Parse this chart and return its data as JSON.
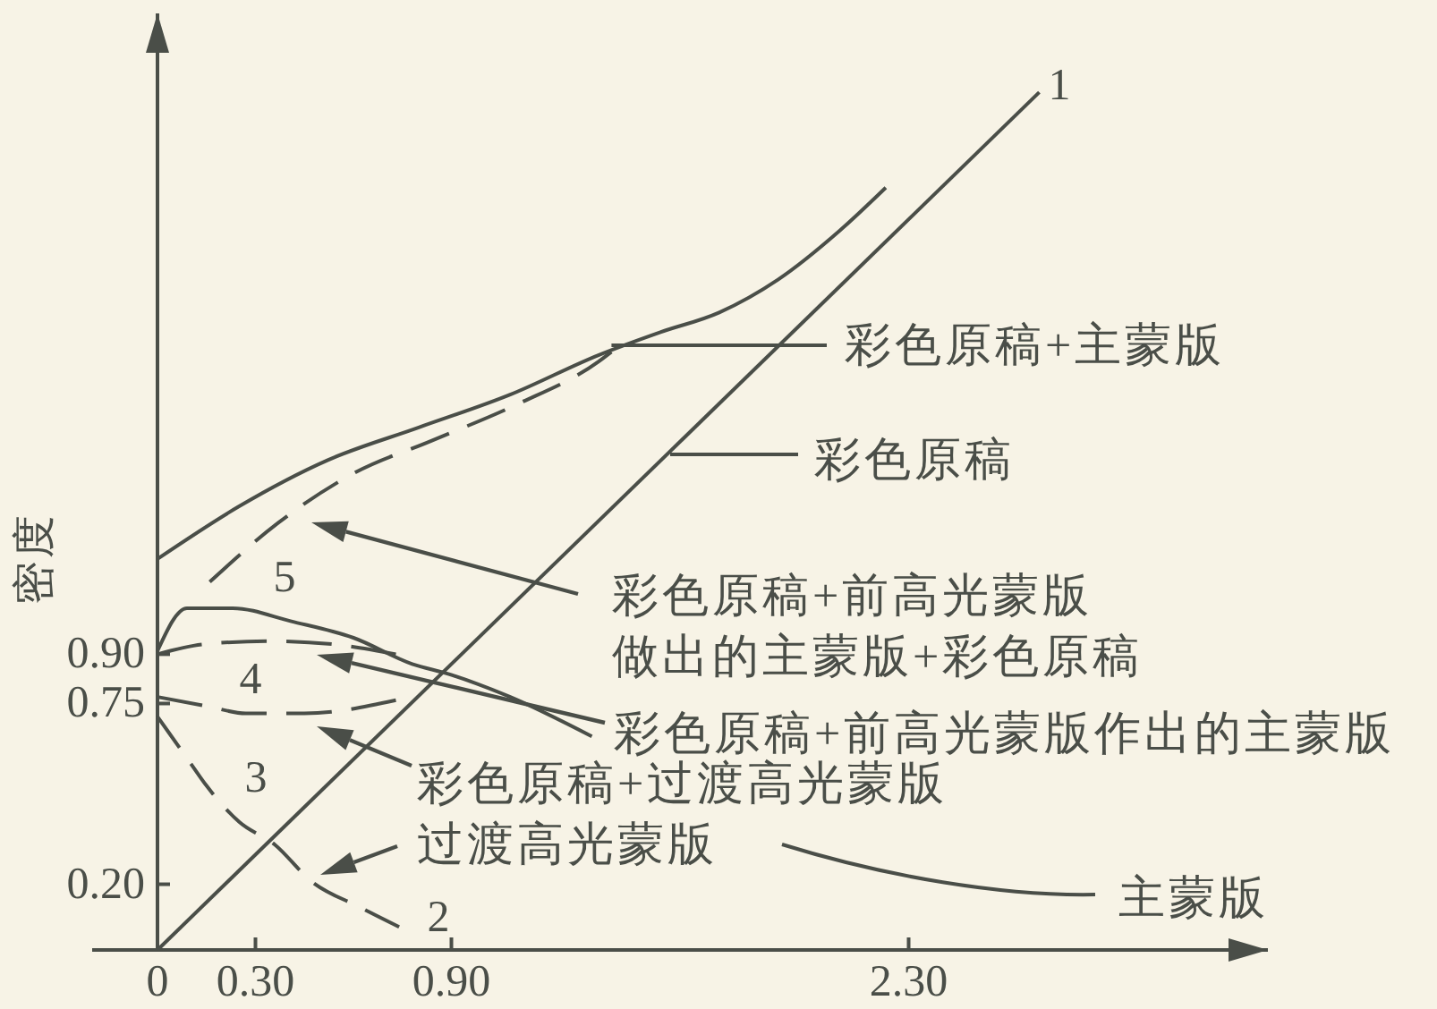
{
  "chart_data": {
    "type": "line",
    "ylabel": "密度",
    "xlim": [
      -0.2,
      3.4
    ],
    "ylim": [
      0,
      2.85
    ],
    "xticks": [
      0,
      {
        "value": 0.3,
        "label": "0.30"
      },
      {
        "value": 0.9,
        "label": "0.90"
      },
      {
        "value": 2.3,
        "label": "2.30"
      }
    ],
    "yticks": [
      {
        "value": 0.2,
        "label": "0.20"
      },
      0.75,
      {
        "value": 0.9,
        "label": "0.90"
      }
    ],
    "series": [
      {
        "color": "#4a4e48",
        "line_style": "solid",
        "x": [
          0,
          2.7
        ],
        "values": [
          0,
          2.61
        ]
      },
      {
        "color": "#4a4e48",
        "line_style": "solid",
        "x": [
          0,
          0.25,
          0.52,
          0.8,
          1.08,
          1.35,
          1.54,
          1.72,
          1.9,
          2.09,
          2.23
        ],
        "values": [
          1.19,
          1.35,
          1.49,
          1.59,
          1.69,
          1.81,
          1.88,
          1.94,
          2.04,
          2.19,
          2.32
        ]
      },
      {
        "color": "#4a4e48",
        "line_style": "dashed",
        "x": [
          0.16,
          0.37,
          0.6,
          0.84,
          1.1,
          1.35,
          1.39
        ],
        "values": [
          1.12,
          1.3,
          1.45,
          1.55,
          1.66,
          1.79,
          1.82
        ]
      },
      {
        "color": "#4a4e48",
        "line_style": "solid",
        "x": [
          0,
          0.09,
          0.23,
          0.41,
          0.6,
          0.78,
          0.89,
          1.08,
          1.33
        ],
        "values": [
          0.91,
          1.04,
          1.04,
          1.0,
          0.95,
          0.87,
          0.84,
          0.77,
          0.65
        ]
      },
      {
        "color": "#4a4e48",
        "line_style": "dashed",
        "x": [
          0,
          0.14,
          0.34,
          0.54,
          0.73
        ],
        "values": [
          0.9,
          0.93,
          0.94,
          0.93,
          0.9
        ]
      },
      {
        "color": "#4a4e48",
        "line_style": "dashed",
        "x": [
          0,
          0.16,
          0.27,
          0.45,
          0.73
        ],
        "values": [
          0.77,
          0.74,
          0.72,
          0.72,
          0.76
        ]
      },
      {
        "color": "#4a4e48",
        "line_style": "dashed",
        "x": [
          0,
          0.1,
          0.15,
          0.25,
          0.36,
          0.47,
          0.62,
          0.74
        ],
        "values": [
          0.71,
          0.57,
          0.5,
          0.39,
          0.32,
          0.21,
          0.13,
          0.07
        ]
      }
    ],
    "annotations": [
      "1",
      "彩色原稿+主蒙版",
      "彩色原稿",
      "彩色原稿+前高光蒙版",
      "做出的主蒙版+彩色原稿",
      "彩色原稿+前高光蒙版作出的主蒙版",
      "彩色原稿+过渡高光蒙版",
      "过渡高光蒙版",
      "主蒙版",
      "5",
      "4",
      "3",
      "2"
    ]
  }
}
